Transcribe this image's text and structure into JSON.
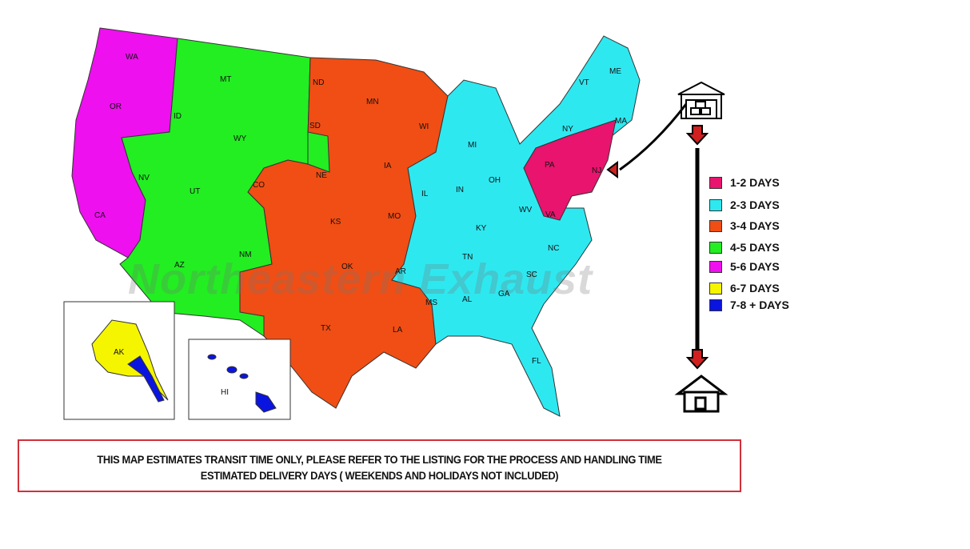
{
  "map": {
    "watermark": "Northeastern Exhaust",
    "states": {
      "WA": "WA",
      "OR": "OR",
      "CA": "CA",
      "NV": "NV",
      "ID": "ID",
      "MT": "MT",
      "WY": "WY",
      "UT": "UT",
      "AZ": "AZ",
      "CO": "CO",
      "NM": "NM",
      "ND": "ND",
      "SD": "SD",
      "NE": "NE",
      "KS": "KS",
      "OK": "OK",
      "TX": "TX",
      "MN": "MN",
      "IA": "IA",
      "MO": "MO",
      "AR": "AR",
      "LA": "LA",
      "WI": "WI",
      "IL": "IL",
      "MI": "MI",
      "IN": "IN",
      "OH": "OH",
      "KY": "KY",
      "TN": "TN",
      "MS": "MS",
      "AL": "AL",
      "GA": "GA",
      "FL": "FL",
      "SC": "SC",
      "NC": "NC",
      "VA": "VA",
      "WV": "WV",
      "PA": "PA",
      "NY": "NY",
      "NJ": "NJ",
      "VT": "VT",
      "ME": "ME",
      "MA": "MA",
      "AK": "AK",
      "HI": "HI"
    },
    "zone_colors": {
      "1-2": "#e8146e",
      "2-3": "#2ee8f0",
      "3-4": "#f04e14",
      "4-5": "#22ee22",
      "5-6": "#ee10ee",
      "6-7": "#f5f500",
      "7-8+": "#0a14e0"
    }
  },
  "flow": {
    "origin_icon": "warehouse-icon",
    "destination_icon": "house-icon",
    "arrow_icon": "red-down-arrow-icon"
  },
  "legend": [
    {
      "label": "1-2 DAYS",
      "color": "#e8146e"
    },
    {
      "label": "2-3 DAYS",
      "color": "#2ee8f0"
    },
    {
      "label": "3-4 DAYS",
      "color": "#f04e14"
    },
    {
      "label": "4-5 DAYS",
      "color": "#22ee22"
    },
    {
      "label": "5-6 DAYS",
      "color": "#ee10ee"
    },
    {
      "label": "6-7 DAYS",
      "color": "#f5f500"
    },
    {
      "label": "7-8 + DAYS",
      "color": "#0a14e0"
    }
  ],
  "notice": {
    "line1": "THIS MAP ESTIMATES TRANSIT TIME ONLY, PLEASE REFER TO THE LISTING FOR THE PROCESS AND HANDLING TIME",
    "line2": "ESTIMATED DELIVERY DAYS ( WEEKENDS AND HOLIDAYS NOT INCLUDED)"
  }
}
